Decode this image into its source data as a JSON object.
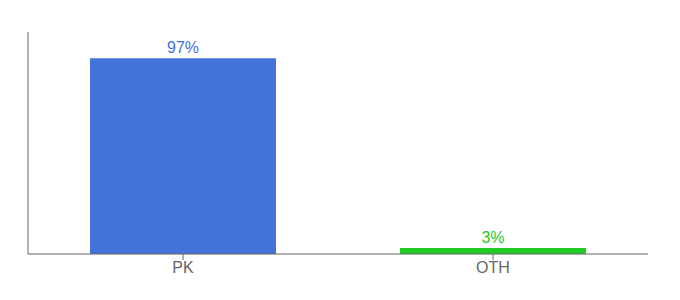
{
  "chart_data": {
    "type": "bar",
    "categories": [
      "PK",
      "OTH"
    ],
    "values": [
      97,
      3
    ],
    "value_labels": [
      "97%",
      "3%"
    ],
    "colors": [
      "#4472db",
      "#22cc22"
    ],
    "ylim": [
      0,
      110
    ],
    "data_labels": true,
    "tick_labels": "x"
  }
}
